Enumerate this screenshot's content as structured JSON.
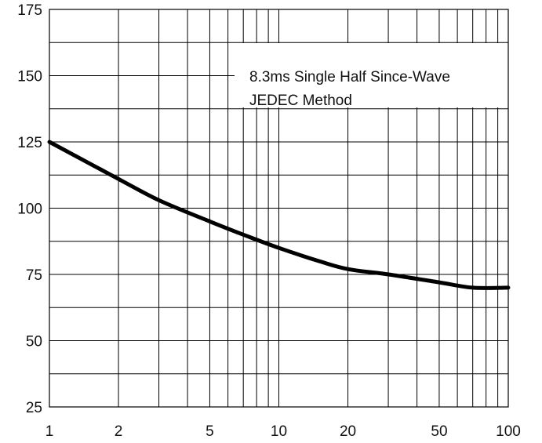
{
  "chart_data": {
    "type": "line",
    "title": "",
    "xlabel": "",
    "ylabel": "",
    "x_scale": "log",
    "xlim": [
      1,
      100
    ],
    "ylim": [
      25,
      175
    ],
    "x_ticks": [
      1,
      2,
      5,
      10,
      20,
      50,
      100
    ],
    "x_tick_labels": [
      "1",
      "2",
      "5",
      "10",
      "20",
      "50",
      "100"
    ],
    "y_ticks": [
      25,
      50,
      75,
      100,
      125,
      150,
      175
    ],
    "y_tick_labels": [
      "25",
      "50",
      "75",
      "100",
      "125",
      "150",
      "175"
    ],
    "grid": true,
    "annotation": {
      "line1": "8.3ms Single Half Since-Wave",
      "line2": "JEDEC Method",
      "placement": "top-right"
    },
    "series": [
      {
        "x": [
          1,
          2,
          3,
          5,
          7,
          10,
          15,
          20,
          30,
          50,
          70,
          100
        ],
        "y": [
          125,
          111,
          103,
          95,
          90,
          85,
          80,
          77,
          75,
          72,
          70,
          70
        ],
        "color": "#000000"
      }
    ]
  }
}
